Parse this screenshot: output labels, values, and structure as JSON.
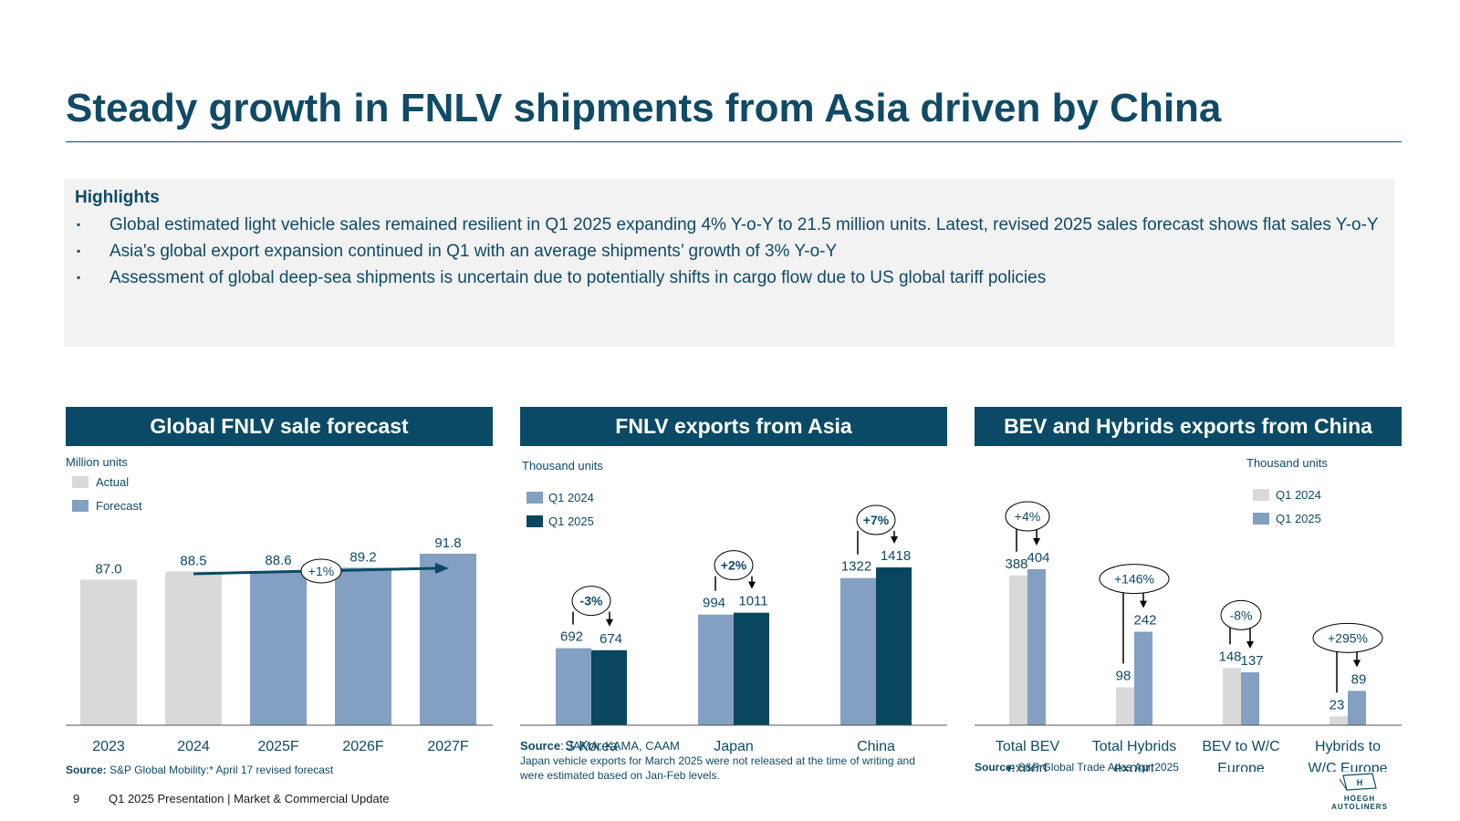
{
  "title": "Steady growth in FNLV shipments from Asia driven by China",
  "highlights": {
    "heading": "Highlights",
    "bullet_glyph": "▪",
    "items": [
      "Global estimated light vehicle sales remained resilient in Q1 2025 expanding 4% Y-o-Y to 21.5 million units. Latest, revised 2025 sales forecast shows flat sales Y-o-Y",
      "Asia's global export expansion continued in Q1 with an average shipments’ growth of 3% Y-o-Y",
      "Assessment of global deep-sea shipments is uncertain due to potentially shifts in cargo flow due to US global tariff policies"
    ]
  },
  "colors": {
    "header_bg": "#0a4a66",
    "actual": "#d9d9d9",
    "forecast": "#839fc2",
    "q1_2024_asia": "#839fc2",
    "q1_2025_asia": "#08475f",
    "q1_2024_china": "#d9d9d9",
    "q1_2025_china": "#839fc2",
    "text": "#0f4a66"
  },
  "chart_data": [
    {
      "type": "bar",
      "title": "Global FNLV sale forecast",
      "unit_label": "Million units",
      "categories": [
        "2023",
        "2024",
        "2025F",
        "2026F",
        "2027F"
      ],
      "values": [
        87.0,
        88.5,
        88.6,
        89.2,
        91.8
      ],
      "value_labels": [
        "87.0",
        "88.5",
        "88.6",
        "89.2",
        "91.8"
      ],
      "bar_kind": [
        "Actual",
        "Actual",
        "Forecast",
        "Forecast",
        "Forecast"
      ],
      "legend": [
        {
          "name": "Actual",
          "color": "#d9d9d9"
        },
        {
          "name": "Forecast",
          "color": "#839fc2"
        }
      ],
      "trend_annotation": "+1%",
      "source_label": "Source:",
      "source": "S&P Global Mobility:* April 17 revised forecast"
    },
    {
      "type": "bar",
      "title": "FNLV exports from Asia",
      "unit_label": "Thousand units",
      "categories": [
        "S Korea",
        "Japan",
        "China"
      ],
      "series": [
        {
          "name": "Q1 2024",
          "values": [
            692,
            994,
            1322
          ],
          "color": "#839fc2"
        },
        {
          "name": "Q1 2025",
          "values": [
            674,
            1011,
            1418
          ],
          "color": "#08475f"
        }
      ],
      "annotations": [
        "-3%",
        "+2%",
        "+7%"
      ],
      "source_label": "Source",
      "source": ": JAMA, KAMA, CAAM",
      "note": "Japan vehicle exports for March 2025 were not released at the time of writing and were estimated based on Jan-Feb levels."
    },
    {
      "type": "bar",
      "title": "BEV and Hybrids exports from China",
      "unit_label": "Thousand units",
      "categories": [
        [
          "Total BEV",
          "export"
        ],
        [
          "Total Hybrids",
          "export"
        ],
        [
          "BEV to W/C",
          "Europe"
        ],
        [
          "Hybrids to",
          "W/C Europe"
        ]
      ],
      "series": [
        {
          "name": "Q1 2024",
          "values": [
            388,
            98,
            148,
            23
          ],
          "color": "#d9d9d9"
        },
        {
          "name": "Q1 2025",
          "values": [
            404,
            242,
            137,
            89
          ],
          "color": "#839fc2"
        }
      ],
      "annotations": [
        "+4%",
        "+146%",
        "-8%",
        "+295%"
      ],
      "source_label": "Source",
      "source": ": S&P Global Trade Atlas Apr 2025"
    }
  ],
  "footer": {
    "page": "9",
    "text": "Q1 2025 Presentation | Market & Commercial Update",
    "logo_text": "HÖEGH AUTOLINERS"
  }
}
